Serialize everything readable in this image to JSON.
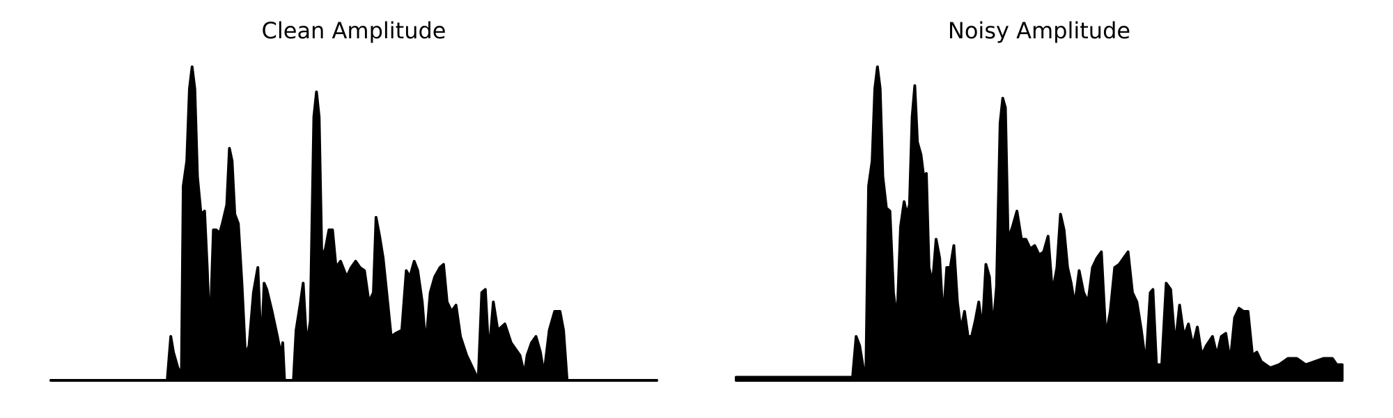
{
  "chart_data": [
    {
      "type": "area",
      "title": "Clean Amplitude",
      "color": "#000000",
      "xlim": [
        0,
        682
      ],
      "ylim": [
        0,
        1
      ],
      "x": [
        0,
        131,
        135,
        138,
        143,
        147,
        149,
        153,
        156,
        159,
        162,
        165,
        169,
        173,
        176,
        179,
        183,
        186,
        190,
        193,
        198,
        201,
        204,
        207,
        211,
        215,
        219,
        223,
        228,
        233,
        237,
        240,
        243,
        249,
        255,
        259,
        261,
        263,
        273,
        276,
        281,
        284,
        288,
        292,
        296,
        299,
        302,
        305,
        309,
        313,
        317,
        321,
        326,
        333,
        338,
        343,
        348,
        353,
        358,
        363,
        366,
        370,
        374,
        378,
        383,
        388,
        395,
        400,
        404,
        409,
        413,
        418,
        422,
        427,
        432,
        438,
        442,
        446,
        451,
        456,
        461,
        468,
        478,
        481,
        485,
        489,
        493,
        498,
        503,
        511,
        518,
        528,
        533,
        536,
        541,
        546,
        551,
        555,
        561,
        567,
        573,
        577,
        581,
        682
      ],
      "values": [
        0,
        0,
        0.14,
        0.09,
        0.04,
        0.02,
        0.62,
        0.7,
        0.93,
        1,
        0.93,
        0.65,
        0.53,
        0.54,
        0.36,
        0.14,
        0.48,
        0.48,
        0.47,
        0.5,
        0.56,
        0.74,
        0.7,
        0.53,
        0.5,
        0.31,
        0.08,
        0.11,
        0.28,
        0.36,
        0.09,
        0.31,
        0.29,
        0.22,
        0.14,
        0.08,
        0.12,
        0,
        0,
        0.16,
        0.25,
        0.31,
        0.11,
        0.19,
        0.84,
        0.92,
        0.84,
        0.39,
        0.42,
        0.48,
        0.48,
        0.36,
        0.38,
        0.33,
        0.36,
        0.38,
        0.36,
        0.35,
        0.25,
        0.28,
        0.52,
        0.46,
        0.39,
        0.28,
        0.14,
        0.15,
        0.16,
        0.35,
        0.33,
        0.38,
        0.35,
        0.25,
        0.11,
        0.28,
        0.33,
        0.36,
        0.37,
        0.25,
        0.22,
        0.24,
        0.14,
        0.08,
        0.02,
        0,
        0.28,
        0.29,
        0.08,
        0.25,
        0.16,
        0.18,
        0.12,
        0.08,
        0.02,
        0.08,
        0.12,
        0.14,
        0.09,
        0.02,
        0.16,
        0.22,
        0.22,
        0.16,
        0,
        0
      ]
    },
    {
      "type": "area",
      "title": "Noisy Amplitude",
      "color": "#000000",
      "xlim": [
        0,
        682
      ],
      "ylim": [
        0,
        1
      ],
      "x": [
        0,
        131,
        135,
        139,
        143,
        146,
        149,
        153,
        156,
        159,
        162,
        165,
        169,
        173,
        177,
        181,
        185,
        189,
        192,
        195,
        198,
        201,
        204,
        208,
        211,
        214,
        217,
        221,
        225,
        229,
        233,
        237,
        241,
        245,
        249,
        253,
        257,
        261,
        265,
        269,
        273,
        277,
        281,
        285,
        289,
        293,
        297,
        300,
        303,
        306,
        311,
        316,
        321,
        326,
        331,
        336,
        341,
        346,
        351,
        356,
        361,
        365,
        369,
        373,
        377,
        381,
        386,
        391,
        396,
        401,
        406,
        411,
        416,
        421,
        426,
        431,
        436,
        441,
        446,
        451,
        456,
        461,
        466,
        469,
        473,
        479,
        484,
        489,
        494,
        499,
        504,
        509,
        514,
        519,
        524,
        529,
        536,
        541,
        546,
        551,
        556,
        561,
        566,
        571,
        576,
        581,
        586,
        591,
        596,
        601,
        611,
        621,
        631,
        641,
        651,
        661,
        671,
        676,
        682
      ],
      "values": [
        0.01,
        0.01,
        0.14,
        0.11,
        0.04,
        0.02,
        0.62,
        0.7,
        0.93,
        1,
        0.93,
        0.65,
        0.55,
        0.54,
        0.28,
        0.19,
        0.49,
        0.57,
        0.53,
        0.56,
        0.84,
        0.94,
        0.76,
        0.72,
        0.65,
        0.66,
        0.36,
        0.31,
        0.45,
        0.39,
        0.19,
        0.36,
        0.36,
        0.43,
        0.25,
        0.16,
        0.22,
        0.14,
        0.14,
        0.19,
        0.25,
        0.16,
        0.37,
        0.33,
        0.16,
        0.3,
        0.82,
        0.9,
        0.87,
        0.45,
        0.49,
        0.54,
        0.45,
        0.45,
        0.42,
        0.43,
        0.4,
        0.41,
        0.46,
        0.28,
        0.36,
        0.53,
        0.48,
        0.36,
        0.31,
        0.24,
        0.35,
        0.28,
        0.25,
        0.36,
        0.39,
        0.41,
        0.14,
        0.22,
        0.36,
        0.37,
        0.39,
        0.41,
        0.28,
        0.25,
        0.16,
        0.05,
        0.28,
        0.29,
        0.05,
        0.05,
        0.31,
        0.29,
        0.11,
        0.24,
        0.14,
        0.18,
        0.11,
        0.17,
        0.08,
        0.11,
        0.14,
        0.08,
        0.14,
        0.15,
        0.06,
        0.2,
        0.23,
        0.22,
        0.22,
        0.08,
        0.09,
        0.06,
        0.05,
        0.04,
        0.05,
        0.07,
        0.07,
        0.05,
        0.06,
        0.07,
        0.07,
        0.05,
        0.05
      ]
    }
  ]
}
